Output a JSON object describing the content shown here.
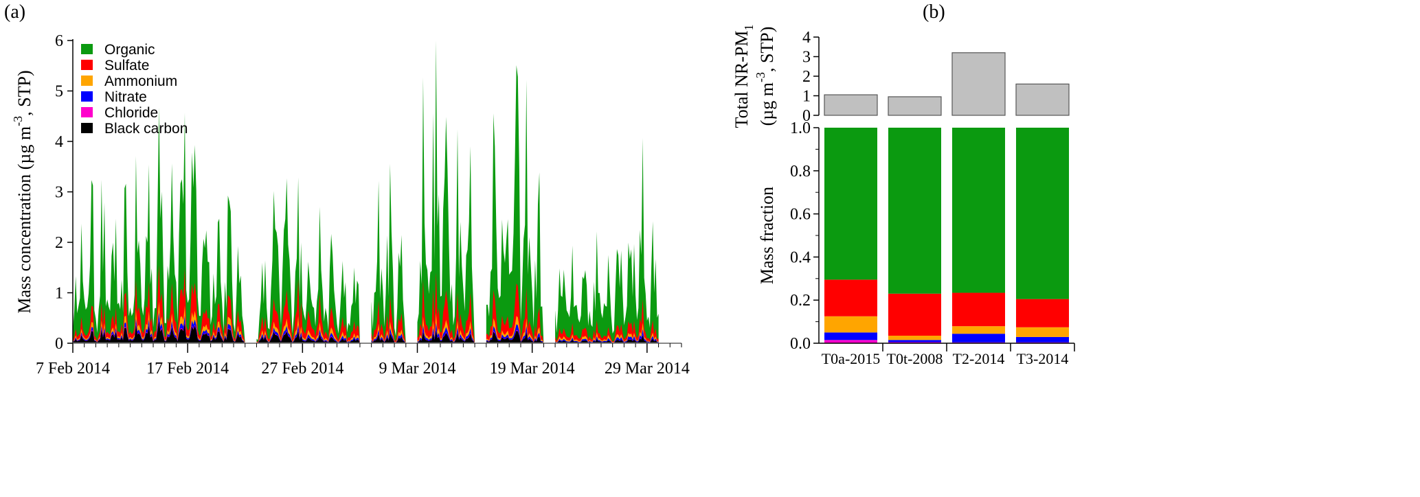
{
  "panel_labels": {
    "a": "(a)",
    "b": "(b)"
  },
  "colors": {
    "Organic": "#0b9a10",
    "Sulfate": "#ff0000",
    "Ammonium": "#ffa500",
    "Nitrate": "#0000ff",
    "Chloride": "#ff00cc",
    "Black carbon": "#000000",
    "total_bar": "#c0c0c0"
  },
  "chart_data": [
    {
      "type": "area",
      "stacked": true,
      "ylabel": "Mass concentration (µg m⁻³, STP)",
      "ylabel_parts": {
        "main": "Mass concentration (µg m",
        "sup": "-3",
        "tail": ", STP)"
      },
      "ylim": [
        0,
        6
      ],
      "yticks": [
        0,
        1,
        2,
        3,
        4,
        5,
        6
      ],
      "xlim": [
        "2014-02-07",
        "2014-04-01"
      ],
      "xtick_labels": [
        "7 Feb 2014",
        "17 Feb 2014",
        "27 Feb 2014",
        "9 Mar 2014",
        "19 Mar 2014",
        "29 Mar 2014"
      ],
      "xtick_values": [
        "2014-02-07",
        "2014-02-17",
        "2014-02-27",
        "2014-03-09",
        "2014-03-19",
        "2014-03-29"
      ],
      "legend_position": "top-left",
      "legend": [
        "Organic",
        "Sulfate",
        "Ammonium",
        "Nitrate",
        "Chloride",
        "Black carbon"
      ],
      "data_gaps": [
        [
          "2014-02-22",
          "2014-02-23"
        ],
        [
          "2014-03-04",
          "2014-03-05"
        ],
        [
          "2014-03-08",
          "2014-03-09"
        ],
        [
          "2014-03-14",
          "2014-03-15"
        ],
        [
          "2014-03-20",
          "2014-03-21"
        ]
      ],
      "series": [
        {
          "name": "Organic",
          "x": [
            "2014-02-07",
            "2014-02-09",
            "2014-02-11",
            "2014-02-13",
            "2014-02-15",
            "2014-02-16",
            "2014-02-18",
            "2014-02-20",
            "2014-02-23",
            "2014-02-25",
            "2014-02-27",
            "2014-03-01",
            "2014-03-03",
            "2014-03-06",
            "2014-03-08",
            "2014-03-10",
            "2014-03-12",
            "2014-03-14",
            "2014-03-16",
            "2014-03-18",
            "2014-03-20",
            "2014-03-22",
            "2014-03-24",
            "2014-03-26",
            "2014-03-28",
            "2014-03-30"
          ],
          "values": [
            1.3,
            1.5,
            1.1,
            1.3,
            1.8,
            2.3,
            1.6,
            1.4,
            0.3,
            1.5,
            1.2,
            0.9,
            0.6,
            1.6,
            0.7,
            2.8,
            2.4,
            1.5,
            2.3,
            2.7,
            1.1,
            1.1,
            1.0,
            1.0,
            1.9,
            1.0
          ]
        },
        {
          "name": "Sulfate",
          "x": [
            "2014-02-07",
            "2014-02-09",
            "2014-02-11",
            "2014-02-13",
            "2014-02-15",
            "2014-02-16",
            "2014-02-18",
            "2014-02-20",
            "2014-02-23",
            "2014-02-25",
            "2014-02-27",
            "2014-03-01",
            "2014-03-03",
            "2014-03-06",
            "2014-03-08",
            "2014-03-10",
            "2014-03-12",
            "2014-03-14",
            "2014-03-16",
            "2014-03-18",
            "2014-03-20",
            "2014-03-22",
            "2014-03-24",
            "2014-03-26",
            "2014-03-28",
            "2014-03-30"
          ],
          "values": [
            0.15,
            0.2,
            0.2,
            0.35,
            0.4,
            0.6,
            0.3,
            0.3,
            0.1,
            0.3,
            0.5,
            0.25,
            0.15,
            0.3,
            0.15,
            0.5,
            0.4,
            0.3,
            0.35,
            0.4,
            0.15,
            0.15,
            0.15,
            0.1,
            0.3,
            0.1
          ]
        },
        {
          "name": "Ammonium",
          "x": [
            "2014-02-07",
            "2014-02-09",
            "2014-02-11",
            "2014-02-13",
            "2014-02-15",
            "2014-02-16",
            "2014-02-18",
            "2014-02-20",
            "2014-02-23",
            "2014-02-25",
            "2014-02-27",
            "2014-03-01",
            "2014-03-03",
            "2014-03-06",
            "2014-03-08",
            "2014-03-10",
            "2014-03-12",
            "2014-03-14",
            "2014-03-16",
            "2014-03-18",
            "2014-03-20",
            "2014-03-22",
            "2014-03-24",
            "2014-03-26",
            "2014-03-28",
            "2014-03-30"
          ],
          "values": [
            0.05,
            0.06,
            0.06,
            0.1,
            0.12,
            0.15,
            0.1,
            0.1,
            0.03,
            0.08,
            0.12,
            0.07,
            0.04,
            0.08,
            0.04,
            0.12,
            0.1,
            0.08,
            0.1,
            0.1,
            0.05,
            0.05,
            0.05,
            0.04,
            0.08,
            0.03
          ]
        },
        {
          "name": "Nitrate",
          "x": [
            "2014-02-07",
            "2014-02-09",
            "2014-02-11",
            "2014-02-13",
            "2014-02-15",
            "2014-02-16",
            "2014-02-18",
            "2014-02-20",
            "2014-02-23",
            "2014-02-25",
            "2014-02-27",
            "2014-03-01",
            "2014-03-03",
            "2014-03-06",
            "2014-03-08",
            "2014-03-10",
            "2014-03-12",
            "2014-03-14",
            "2014-03-16",
            "2014-03-18",
            "2014-03-20",
            "2014-03-22",
            "2014-03-24",
            "2014-03-26",
            "2014-03-28",
            "2014-03-30"
          ],
          "values": [
            0.03,
            0.04,
            0.04,
            0.06,
            0.08,
            0.1,
            0.06,
            0.06,
            0.02,
            0.05,
            0.07,
            0.04,
            0.03,
            0.05,
            0.03,
            0.08,
            0.07,
            0.05,
            0.06,
            0.07,
            0.03,
            0.03,
            0.03,
            0.03,
            0.07,
            0.02
          ]
        },
        {
          "name": "Chloride",
          "x": [
            "2014-02-07",
            "2014-02-09",
            "2014-02-11",
            "2014-02-13",
            "2014-02-15",
            "2014-02-16",
            "2014-02-18",
            "2014-02-20",
            "2014-02-23",
            "2014-02-25",
            "2014-02-27",
            "2014-03-01",
            "2014-03-03",
            "2014-03-06",
            "2014-03-08",
            "2014-03-10",
            "2014-03-12",
            "2014-03-14",
            "2014-03-16",
            "2014-03-18",
            "2014-03-20",
            "2014-03-22",
            "2014-03-24",
            "2014-03-26",
            "2014-03-28",
            "2014-03-30"
          ],
          "values": [
            0.01,
            0.01,
            0.01,
            0.01,
            0.02,
            0.02,
            0.01,
            0.01,
            0.0,
            0.01,
            0.01,
            0.01,
            0.0,
            0.01,
            0.0,
            0.01,
            0.01,
            0.01,
            0.01,
            0.01,
            0.0,
            0.0,
            0.0,
            0.0,
            0.01,
            0.0
          ]
        },
        {
          "name": "Black carbon",
          "x": [
            "2014-02-07",
            "2014-02-09",
            "2014-02-11",
            "2014-02-13",
            "2014-02-15",
            "2014-02-16",
            "2014-02-18",
            "2014-02-20",
            "2014-02-23",
            "2014-02-25",
            "2014-02-27",
            "2014-03-01",
            "2014-03-03",
            "2014-03-06",
            "2014-03-08",
            "2014-03-10",
            "2014-03-12",
            "2014-03-14",
            "2014-03-16",
            "2014-03-18",
            "2014-03-20",
            "2014-03-22",
            "2014-03-24",
            "2014-03-26",
            "2014-03-28",
            "2014-03-30"
          ],
          "values": [
            0.1,
            0.15,
            0.15,
            0.2,
            0.25,
            0.3,
            0.2,
            0.2,
            0.05,
            0.15,
            0.15,
            0.08,
            0.05,
            0.12,
            0.06,
            0.15,
            0.15,
            0.1,
            0.15,
            0.15,
            0.05,
            0.05,
            0.05,
            0.04,
            0.1,
            0.04
          ]
        }
      ]
    },
    {
      "type": "bar",
      "ylabel": "Total NR-PM₁ (µg m⁻³, STP)",
      "ylabel_parts": {
        "line1_main": "Total NR-PM",
        "line1_sub": "1",
        "line2_main": "(µg m",
        "line2_sup": "-3",
        "line2_tail": ", STP)"
      },
      "ylim": [
        0,
        4
      ],
      "yticks": [
        0,
        1,
        2,
        3,
        4
      ],
      "categories": [
        "T0a-2015",
        "T0t-2008",
        "T2-2014",
        "T3-2014"
      ],
      "values": [
        1.05,
        0.95,
        3.2,
        1.6
      ]
    },
    {
      "type": "bar",
      "stacked": true,
      "ylabel": "Mass fraction",
      "ylim": [
        0,
        1.0
      ],
      "yticks": [
        0.0,
        0.2,
        0.4,
        0.6,
        0.8,
        1.0
      ],
      "ytick_labels": [
        "0.0",
        "0.2",
        "0.4",
        "0.6",
        "0.8",
        "1.0"
      ],
      "categories": [
        "T0a-2015",
        "T0t-2008",
        "T2-2014",
        "T3-2014"
      ],
      "series": [
        {
          "name": "Chloride",
          "values": [
            0.015,
            0.005,
            0.004,
            0.004
          ]
        },
        {
          "name": "Black carbon",
          "values": [
            0.0,
            0.0,
            0.0,
            0.0
          ]
        },
        {
          "name": "Nitrate",
          "values": [
            0.035,
            0.01,
            0.04,
            0.025
          ]
        },
        {
          "name": "Ammonium",
          "values": [
            0.075,
            0.02,
            0.035,
            0.045
          ]
        },
        {
          "name": "Sulfate",
          "values": [
            0.17,
            0.195,
            0.155,
            0.131
          ]
        },
        {
          "name": "Organic",
          "values": [
            0.705,
            0.77,
            0.766,
            0.795
          ]
        }
      ]
    }
  ]
}
